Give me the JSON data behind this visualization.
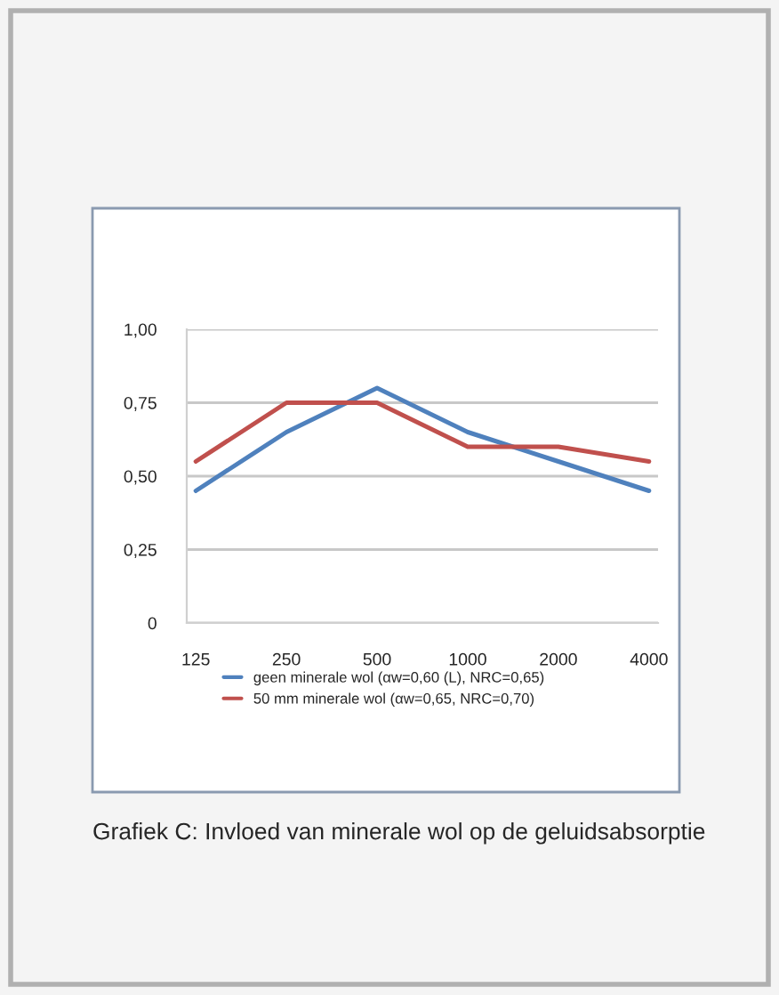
{
  "chart_data": {
    "type": "line",
    "categories": [
      "125",
      "250",
      "500",
      "1000",
      "2000",
      "4000"
    ],
    "series": [
      {
        "name": "geen minerale wol (αw=0,60 (L), NRC=0,65)",
        "color": "#4f81bd",
        "values": [
          0.45,
          0.65,
          0.8,
          0.65,
          0.55,
          0.45
        ]
      },
      {
        "name": "50 mm minerale wol (αw=0,65, NRC=0,70)",
        "color": "#c0504d",
        "values": [
          0.55,
          0.75,
          0.75,
          0.6,
          0.6,
          0.55
        ]
      }
    ],
    "ylim": [
      0,
      1
    ],
    "yticks": [
      {
        "value": 0,
        "label": "0"
      },
      {
        "value": 0.25,
        "label": "0,25"
      },
      {
        "value": 0.5,
        "label": "0,50"
      },
      {
        "value": 0.75,
        "label": "0,75"
      },
      {
        "value": 1,
        "label": "1,00"
      }
    ],
    "grid": "y",
    "legend": "bottom",
    "marker": "none",
    "line_style": "solid",
    "annotations": [
      "Grafiek C: Invloed van minerale wol op de geluidsabsorptie"
    ]
  }
}
